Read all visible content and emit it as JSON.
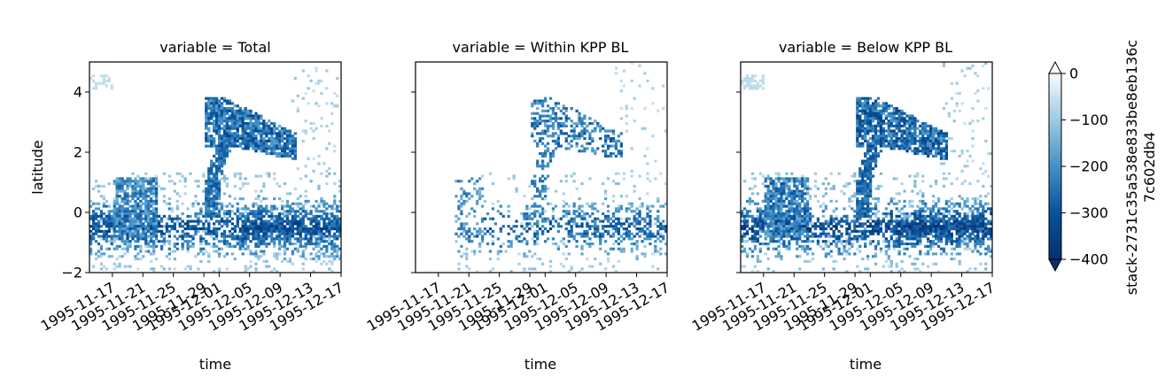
{
  "chart_data": {
    "type": "heatmap",
    "panels": [
      {
        "title": "variable = Total",
        "ylabel": "latitude",
        "key": "total"
      },
      {
        "title": "variable = Within KPP BL",
        "ylabel": "",
        "key": "within"
      },
      {
        "title": "variable = Below KPP BL",
        "ylabel": "",
        "key": "below"
      }
    ],
    "xlabel": "time",
    "x_ticks": [
      "1995-11-17",
      "1995-11-21",
      "1995-11-25",
      "1995-11-29",
      "1995-12-01",
      "1995-12-05",
      "1995-12-09",
      "1995-12-13",
      "1995-12-17"
    ],
    "x_range": [
      "1995-11-14",
      "1995-12-17"
    ],
    "y_ticks": [
      "4",
      "2",
      "0",
      "−2"
    ],
    "y_tick_values": [
      4,
      2,
      0,
      -2
    ],
    "ylim": [
      -2,
      5
    ],
    "colorbar": {
      "label_line1": "stack-2731c35a538e833be8eb136c",
      "label_line2": "7c602db4",
      "ticks": [
        "0",
        "−100",
        "−200",
        "−300",
        "−400"
      ],
      "tick_values": [
        0,
        -100,
        -200,
        -300,
        -400
      ],
      "range": [
        -400,
        0
      ],
      "extend": "both",
      "cmap": "Blues_r",
      "color_min": "#08306b",
      "color_max": "#f7fbff"
    },
    "features": {
      "equatorial_band": {
        "latitude": -0.5,
        "value": -300
      },
      "northern_arc": {
        "latitude_range": [
          2,
          3.8
        ],
        "value": -280
      },
      "vertical_front": {
        "date": "1995-11-29",
        "latitude_range": [
          -0.2,
          2.5
        ],
        "value": -250
      },
      "sparse_top": {
        "latitude": 4.3,
        "value": -60
      }
    }
  }
}
